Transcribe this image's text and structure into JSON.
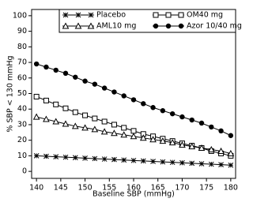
{
  "chart_data": {
    "type": "line",
    "xlabel": "Baseline SBP (mmHg)",
    "ylabel": "% SBP < 130 mmHg",
    "x": [
      140,
      142,
      144,
      146,
      148,
      150,
      152,
      154,
      156,
      158,
      160,
      162,
      164,
      166,
      168,
      170,
      172,
      174,
      176,
      178,
      180
    ],
    "series": [
      {
        "name": "Placebo",
        "color": "#000000",
        "marker": "asterisk",
        "values": [
          10,
          9.7,
          9.4,
          9.1,
          8.8,
          8.5,
          8.2,
          7.9,
          7.6,
          7.3,
          7,
          6.7,
          6.4,
          6.1,
          5.8,
          5.5,
          5.2,
          4.9,
          4.6,
          4.3,
          4
        ]
      },
      {
        "name": "OM40 mg",
        "color": "#000000",
        "marker": "square",
        "values": [
          48,
          45.5,
          43,
          40.5,
          38,
          36,
          34,
          32,
          30,
          28,
          26,
          24,
          22.5,
          21,
          19.5,
          18,
          16.5,
          15,
          13,
          11.5,
          10
        ]
      },
      {
        "name": "AML10 mg",
        "color": "#000000",
        "marker": "triangle",
        "values": [
          35,
          33.5,
          32,
          30.5,
          29,
          28,
          27,
          25.5,
          24.5,
          23.5,
          22.5,
          21.5,
          20.5,
          19.5,
          18.5,
          17,
          16,
          15,
          14,
          13,
          11.5
        ]
      },
      {
        "name": "Azor 10/40 mg",
        "color": "#000000",
        "marker": "circle",
        "values": [
          69,
          67,
          65,
          63,
          60.5,
          58,
          56,
          53.5,
          51,
          48.5,
          46,
          43.5,
          41,
          39,
          37,
          35,
          33,
          31,
          28.5,
          26,
          23
        ]
      }
    ],
    "xlim": [
      139,
      181
    ],
    "xticks": [
      140,
      145,
      150,
      155,
      160,
      165,
      170,
      175,
      180
    ],
    "ylim": [
      -4.5,
      104
    ],
    "yticks": [
      0,
      10,
      20,
      30,
      40,
      50,
      60,
      70,
      80,
      90,
      100
    ]
  }
}
